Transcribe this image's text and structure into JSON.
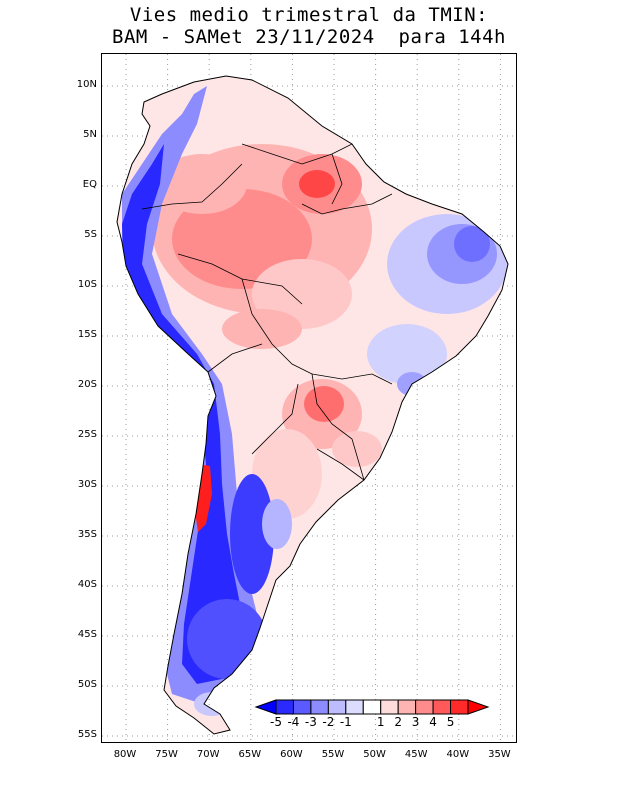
{
  "title": {
    "line1": "Vies medio trimestral da TMIN:",
    "line2": "BAM - SAMet 23/11/2024  para 144h"
  },
  "map": {
    "region": "South America",
    "variable": "TMIN bias",
    "lat_labels": [
      "10N",
      "5N",
      "EQ",
      "5S",
      "10S",
      "15S",
      "20S",
      "25S",
      "30S",
      "35S",
      "40S",
      "45S",
      "50S",
      "55S"
    ],
    "lon_labels": [
      "80W",
      "75W",
      "70W",
      "65W",
      "60W",
      "55W",
      "50W",
      "45W",
      "40W",
      "35W"
    ],
    "grid": "dotted"
  },
  "colorbar": {
    "labels": [
      "-5",
      "-4",
      "-3",
      "-2",
      "-1",
      "1",
      "2",
      "3",
      "4",
      "5"
    ],
    "colors": [
      "#0000ff",
      "#2a2aff",
      "#5a5aff",
      "#8c8cff",
      "#bcbcff",
      "#dcdcff",
      "#ffffff",
      "#ffdcdc",
      "#ffb4b4",
      "#ff8c8c",
      "#ff5a5a",
      "#ff2a2a",
      "#ff0000"
    ]
  },
  "palette": {
    "strong_blue": "#1e1eff",
    "mid_blue": "#6e6eff",
    "light_blue": "#c8c8ff",
    "light_red": "#ffc8c8",
    "mid_red": "#ff7878",
    "strong_red": "#ff2020"
  }
}
